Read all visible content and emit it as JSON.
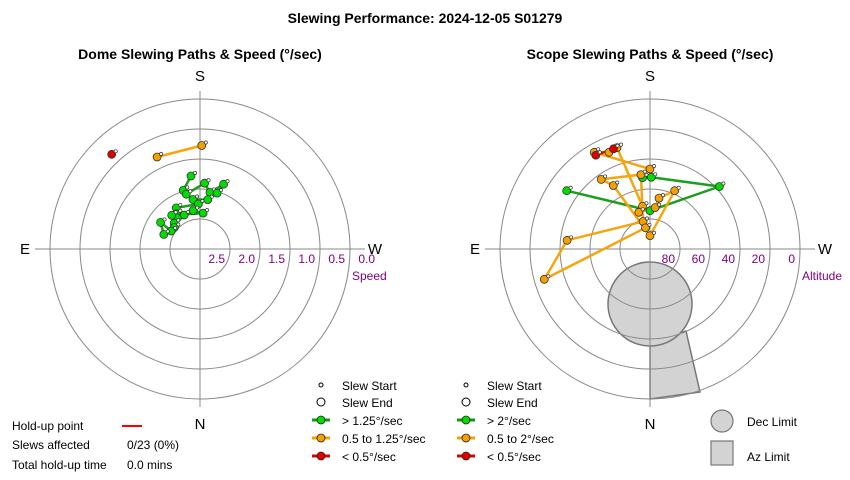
{
  "title": "Slewing Performance: 2024-12-05 S01279",
  "compass": {
    "S": "S",
    "N": "N",
    "E": "E",
    "W": "W"
  },
  "dome": {
    "title": "Dome Slewing Paths & Speed (°/sec)",
    "ring_labels": [
      "2.5",
      "2.0",
      "1.5",
      "1.0",
      "0.5",
      "0.0"
    ],
    "axis_label": "Speed"
  },
  "scope": {
    "title": "Scope Slewing Paths & Speed (°/sec)",
    "ring_labels": [
      "80",
      "60",
      "40",
      "20",
      "0"
    ],
    "axis_label": "Altitude"
  },
  "dome_legend": {
    "items": [
      "Slew Start",
      "Slew End",
      "> 1.25°/sec",
      "0.5 to 1.25°/sec",
      "< 0.5°/sec"
    ]
  },
  "scope_legend": {
    "items": [
      "Slew Start",
      "Slew End",
      "> 2°/sec",
      "0.5 to 2°/sec",
      "< 0.5°/sec"
    ]
  },
  "limits_legend": {
    "dec": "Dec Limit",
    "az": "Az Limit"
  },
  "holdup": {
    "point_label": "Hold-up point",
    "slews_label": "Slews affected",
    "slews_value": "0/23 (0%)",
    "time_label": "Total hold-up time",
    "time_value": "0.0 mins"
  },
  "colors": {
    "fast": "#00dd00",
    "fast_line": "#119911",
    "medium": "#f5a000",
    "medium_line": "#f5a000",
    "slow": "#dd0000",
    "holdup": "#ff0000",
    "grid": "#888888",
    "label": "#800080",
    "limit_fill": "#d3d3d3"
  },
  "chart_data": [
    {
      "type": "scatter",
      "coordinates": "polar",
      "title": "Dome Slewing Paths & Speed (°/sec)",
      "radial_axis": "Speed",
      "radial_range": [
        3.0,
        0.0
      ],
      "comment_units": "points given as azimuth (degrees, N=0, E=90, S=180, W=270) and speed (°/sec)",
      "series": [
        {
          "name": "> 1.25°/sec",
          "points": [
            [
              173,
              1.53
            ],
            [
              164,
              1.78
            ],
            [
              166,
              1.87
            ],
            [
              184,
              1.68
            ],
            [
              190,
              1.85
            ],
            [
              200,
              1.62
            ],
            [
              197,
              1.83
            ],
            [
              189,
              2.0
            ],
            [
              172,
              2.0
            ],
            [
              178,
              2.1
            ],
            [
              150,
              2.05
            ],
            [
              146,
              2.15
            ],
            [
              144,
              2.23
            ],
            [
              135,
              2.27
            ],
            [
              130,
              2.33
            ],
            [
              122,
              2.32
            ],
            [
              124,
              2.05
            ],
            [
              112,
              2.22
            ],
            [
              155,
              2.25
            ],
            [
              170,
              2.22
            ],
            [
              185,
              2.28
            ],
            [
              140,
              2.12
            ]
          ]
        },
        {
          "name": "0.5 to 1.25°/sec",
          "points": [
            [
              155,
              0.97
            ],
            [
              181,
              0.93
            ]
          ]
        },
        {
          "name": "< 0.5°/sec",
          "points": [
            [
              137,
              0.41
            ]
          ]
        }
      ]
    },
    {
      "type": "scatter",
      "coordinates": "polar",
      "title": "Scope Slewing Paths & Speed (°/sec)",
      "radial_axis": "Altitude",
      "radial_range": [
        90,
        0
      ],
      "comment_units": "points given as azimuth (degrees, N=0, E=90, S=180, W=270) and altitude (degrees)",
      "series": [
        {
          "name": "> 2°/sec",
          "points": [
            [
              174,
              47
            ],
            [
              181,
              47
            ],
            [
              228,
              34
            ],
            [
              180,
              67
            ],
            [
              125,
              29
            ]
          ]
        },
        {
          "name": "0.5 to 2°/sec",
          "points": [
            [
              180,
              42
            ],
            [
              150,
              23
            ],
            [
              157,
              27
            ],
            [
              162,
              26
            ],
            [
              170,
              64
            ],
            [
              163,
              67
            ],
            [
              187,
              65
            ],
            [
              190,
              59
            ],
            [
              203,
              52
            ],
            [
              180,
              82
            ],
            [
              150,
              46
            ],
            [
              145,
              39
            ],
            [
              173,
              45
            ],
            [
              166,
              73
            ],
            [
              96,
              40
            ],
            [
              74,
              24
            ],
            [
              168,
              77
            ]
          ]
        },
        {
          "name": "< 0.5°/sec",
          "points": [
            [
              160,
              26
            ],
            [
              150,
              25
            ]
          ]
        }
      ]
    }
  ]
}
